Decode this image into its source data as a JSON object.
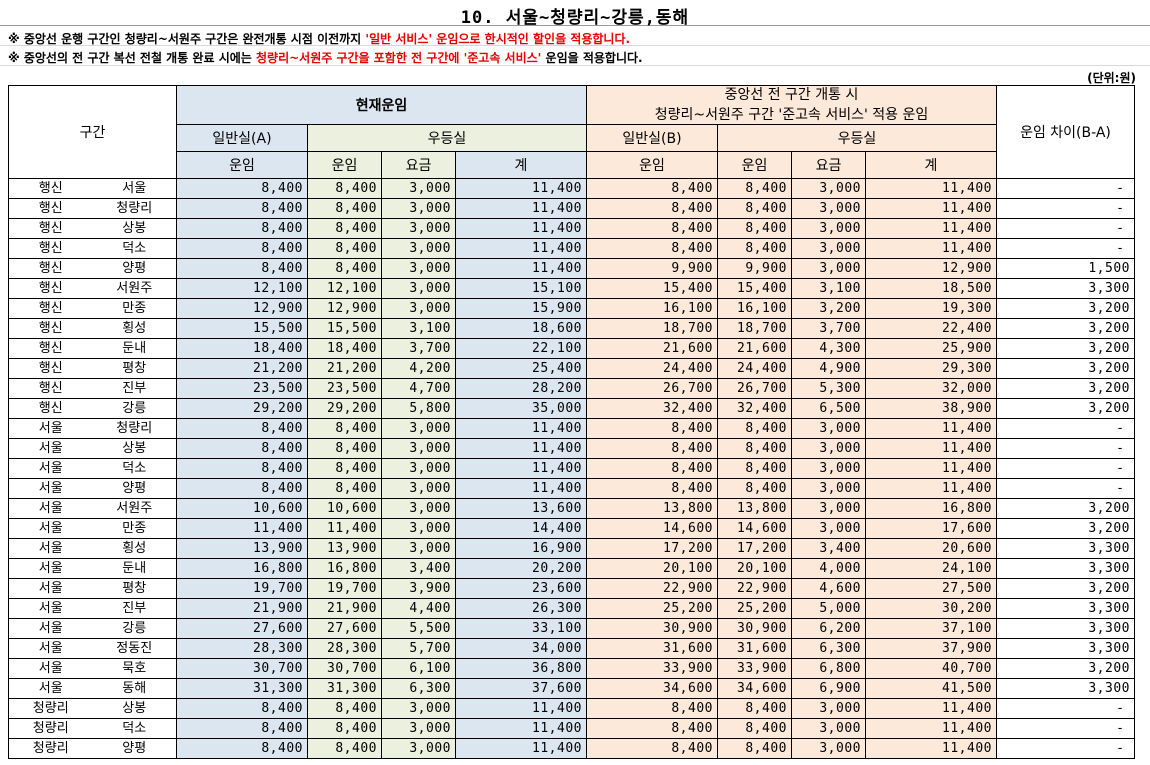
{
  "title": "10. 서울~청량리~강릉,동해",
  "notes": [
    {
      "prefix": "※ 중앙선 운행 구간인 청량리~서원주 구간은 완전개통 시점 이전까지 ",
      "red": "'일반 서비스' 운임으로 한시적인 할인을 적용합니다.",
      "suffix": ""
    },
    {
      "prefix": "※ 중앙선의 전 구간 복선 전철 개통 완료 시에는 ",
      "red": "청량리~서원주 구간을 포함한 전 구간에 '준고속 서비스'",
      "suffix": " 운임을 적용합니다."
    }
  ],
  "unit": "(단위:원)",
  "header": {
    "section": "구간",
    "current": "현재운임",
    "future": "중앙선 전 구간 개통 시",
    "future_sub": "청량리~서원주 구간 '준고속 서비스' 적용 운임",
    "diff": "운임 차이(B-A)",
    "general_a": "일반실(A)",
    "general_b": "일반실(B)",
    "premium": "우등실",
    "fare": "운임",
    "surcharge": "요금",
    "total": "계"
  },
  "colors": {
    "blue": "#dce6f1",
    "green": "#ebf1de",
    "orange": "#fde9d9"
  },
  "rows": [
    [
      "행신",
      "서울",
      "8,400",
      "8,400",
      "3,000",
      "11,400",
      "8,400",
      "8,400",
      "3,000",
      "11,400",
      "-"
    ],
    [
      "행신",
      "청량리",
      "8,400",
      "8,400",
      "3,000",
      "11,400",
      "8,400",
      "8,400",
      "3,000",
      "11,400",
      "-"
    ],
    [
      "행신",
      "상봉",
      "8,400",
      "8,400",
      "3,000",
      "11,400",
      "8,400",
      "8,400",
      "3,000",
      "11,400",
      "-"
    ],
    [
      "행신",
      "덕소",
      "8,400",
      "8,400",
      "3,000",
      "11,400",
      "8,400",
      "8,400",
      "3,000",
      "11,400",
      "-"
    ],
    [
      "행신",
      "양평",
      "8,400",
      "8,400",
      "3,000",
      "11,400",
      "9,900",
      "9,900",
      "3,000",
      "12,900",
      "1,500"
    ],
    [
      "행신",
      "서원주",
      "12,100",
      "12,100",
      "3,000",
      "15,100",
      "15,400",
      "15,400",
      "3,100",
      "18,500",
      "3,300"
    ],
    [
      "행신",
      "만종",
      "12,900",
      "12,900",
      "3,000",
      "15,900",
      "16,100",
      "16,100",
      "3,200",
      "19,300",
      "3,200"
    ],
    [
      "행신",
      "횡성",
      "15,500",
      "15,500",
      "3,100",
      "18,600",
      "18,700",
      "18,700",
      "3,700",
      "22,400",
      "3,200"
    ],
    [
      "행신",
      "둔내",
      "18,400",
      "18,400",
      "3,700",
      "22,100",
      "21,600",
      "21,600",
      "4,300",
      "25,900",
      "3,200"
    ],
    [
      "행신",
      "평창",
      "21,200",
      "21,200",
      "4,200",
      "25,400",
      "24,400",
      "24,400",
      "4,900",
      "29,300",
      "3,200"
    ],
    [
      "행신",
      "진부",
      "23,500",
      "23,500",
      "4,700",
      "28,200",
      "26,700",
      "26,700",
      "5,300",
      "32,000",
      "3,200"
    ],
    [
      "행신",
      "강릉",
      "29,200",
      "29,200",
      "5,800",
      "35,000",
      "32,400",
      "32,400",
      "6,500",
      "38,900",
      "3,200"
    ],
    [
      "서울",
      "청량리",
      "8,400",
      "8,400",
      "3,000",
      "11,400",
      "8,400",
      "8,400",
      "3,000",
      "11,400",
      "-"
    ],
    [
      "서울",
      "상봉",
      "8,400",
      "8,400",
      "3,000",
      "11,400",
      "8,400",
      "8,400",
      "3,000",
      "11,400",
      "-"
    ],
    [
      "서울",
      "덕소",
      "8,400",
      "8,400",
      "3,000",
      "11,400",
      "8,400",
      "8,400",
      "3,000",
      "11,400",
      "-"
    ],
    [
      "서울",
      "양평",
      "8,400",
      "8,400",
      "3,000",
      "11,400",
      "8,400",
      "8,400",
      "3,000",
      "11,400",
      "-"
    ],
    [
      "서울",
      "서원주",
      "10,600",
      "10,600",
      "3,000",
      "13,600",
      "13,800",
      "13,800",
      "3,000",
      "16,800",
      "3,200"
    ],
    [
      "서울",
      "만종",
      "11,400",
      "11,400",
      "3,000",
      "14,400",
      "14,600",
      "14,600",
      "3,000",
      "17,600",
      "3,200"
    ],
    [
      "서울",
      "횡성",
      "13,900",
      "13,900",
      "3,000",
      "16,900",
      "17,200",
      "17,200",
      "3,400",
      "20,600",
      "3,300"
    ],
    [
      "서울",
      "둔내",
      "16,800",
      "16,800",
      "3,400",
      "20,200",
      "20,100",
      "20,100",
      "4,000",
      "24,100",
      "3,300"
    ],
    [
      "서울",
      "평창",
      "19,700",
      "19,700",
      "3,900",
      "23,600",
      "22,900",
      "22,900",
      "4,600",
      "27,500",
      "3,200"
    ],
    [
      "서울",
      "진부",
      "21,900",
      "21,900",
      "4,400",
      "26,300",
      "25,200",
      "25,200",
      "5,000",
      "30,200",
      "3,300"
    ],
    [
      "서울",
      "강릉",
      "27,600",
      "27,600",
      "5,500",
      "33,100",
      "30,900",
      "30,900",
      "6,200",
      "37,100",
      "3,300"
    ],
    [
      "서울",
      "정동진",
      "28,300",
      "28,300",
      "5,700",
      "34,000",
      "31,600",
      "31,600",
      "6,300",
      "37,900",
      "3,300"
    ],
    [
      "서울",
      "묵호",
      "30,700",
      "30,700",
      "6,100",
      "36,800",
      "33,900",
      "33,900",
      "6,800",
      "40,700",
      "3,200"
    ],
    [
      "서울",
      "동해",
      "31,300",
      "31,300",
      "6,300",
      "37,600",
      "34,600",
      "34,600",
      "6,900",
      "41,500",
      "3,300"
    ],
    [
      "청량리",
      "상봉",
      "8,400",
      "8,400",
      "3,000",
      "11,400",
      "8,400",
      "8,400",
      "3,000",
      "11,400",
      "-"
    ],
    [
      "청량리",
      "덕소",
      "8,400",
      "8,400",
      "3,000",
      "11,400",
      "8,400",
      "8,400",
      "3,000",
      "11,400",
      "-"
    ],
    [
      "청량리",
      "양평",
      "8,400",
      "8,400",
      "3,000",
      "11,400",
      "8,400",
      "8,400",
      "3,000",
      "11,400",
      "-"
    ]
  ]
}
